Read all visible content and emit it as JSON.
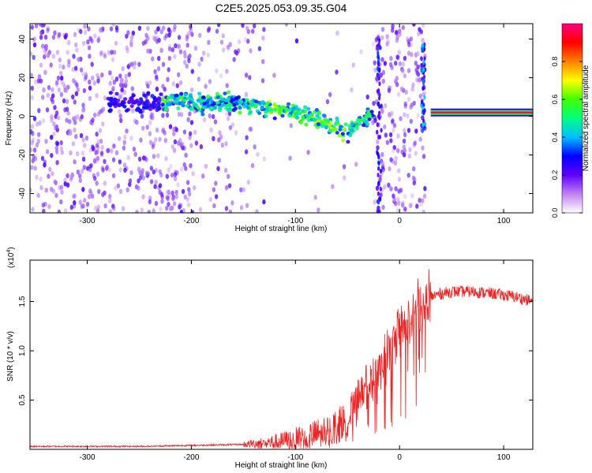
{
  "title": "C2E5.2025.053.09.35.G04",
  "chart_data": [
    {
      "type": "heatmap",
      "xlabel": "Height of straight line (km)",
      "ylabel": "Frequency (Hz)",
      "xlim": [
        -355,
        128
      ],
      "ylim": [
        -50,
        48
      ],
      "x_ticks": [
        -300,
        -200,
        -100,
        0,
        100
      ],
      "x_tick_labels": [
        "-300",
        "-200",
        "-100",
        "0",
        "100"
      ],
      "y_ticks": [
        -40,
        -20,
        0,
        20,
        40
      ],
      "y_tick_labels": [
        "-40",
        "-20",
        "0",
        "20",
        "40"
      ],
      "colorbar": {
        "label": "Normalized spectral amplitude",
        "range": [
          0,
          1
        ],
        "ticks": [
          0.0,
          0.2,
          0.4,
          0.6,
          0.8
        ],
        "tick_labels": [
          "0.0",
          "0.2",
          "0.4",
          "0.6",
          "0.8"
        ],
        "colormap": [
          "#ffffff",
          "#c080f0",
          "#6000ff",
          "#0000ff",
          "#00c0ff",
          "#00ff80",
          "#40ff00",
          "#ffff00",
          "#ff8000",
          "#ff0000",
          "#ff0080"
        ]
      },
      "ridge": {
        "x": [
          -270,
          -240,
          -210,
          -180,
          -150,
          -120,
          -100,
          -80,
          -70,
          -60,
          -50,
          -40,
          -30,
          -25,
          30,
          128
        ],
        "y": [
          7,
          7,
          8,
          7,
          6,
          4,
          2,
          -1,
          -4,
          -6,
          -8,
          -3,
          0,
          2,
          2,
          2
        ]
      },
      "grid": false
    },
    {
      "type": "line",
      "xlabel": "Height of straight line (km)",
      "ylabel": "SNR (10 * v/v)",
      "y_multiplier_label": "(x10",
      "y_multiplier_exp": "4",
      "y_multiplier_close": ")",
      "xlim": [
        -355,
        128
      ],
      "ylim": [
        0,
        1.92
      ],
      "x_ticks": [
        -300,
        -200,
        -100,
        0,
        100
      ],
      "x_tick_labels": [
        "-300",
        "-200",
        "-100",
        "0",
        "100"
      ],
      "y_ticks": [
        0.5,
        1.0,
        1.5
      ],
      "y_tick_labels": [
        "0.5",
        "1.0",
        "1.5"
      ],
      "series_color": "#ee2222",
      "envelope": {
        "x": [
          -355,
          -300,
          -250,
          -200,
          -150,
          -120,
          -100,
          -80,
          -60,
          -50,
          -40,
          -30,
          -20,
          -10,
          0,
          10,
          20,
          30,
          40,
          50,
          70,
          90,
          110,
          128
        ],
        "y": [
          0.03,
          0.03,
          0.03,
          0.04,
          0.05,
          0.07,
          0.1,
          0.15,
          0.22,
          0.3,
          0.45,
          0.65,
          0.85,
          1.0,
          1.15,
          1.3,
          1.45,
          1.55,
          1.58,
          1.6,
          1.6,
          1.58,
          1.55,
          1.5
        ]
      },
      "grid": false
    }
  ]
}
